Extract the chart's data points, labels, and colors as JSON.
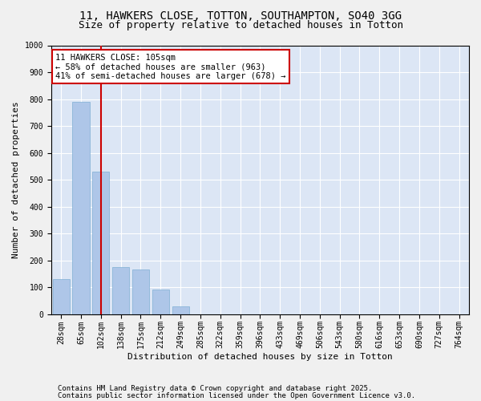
{
  "title_line1": "11, HAWKERS CLOSE, TOTTON, SOUTHAMPTON, SO40 3GG",
  "title_line2": "Size of property relative to detached houses in Totton",
  "xlabel": "Distribution of detached houses by size in Totton",
  "ylabel": "Number of detached properties",
  "bar_categories": [
    "28sqm",
    "65sqm",
    "102sqm",
    "138sqm",
    "175sqm",
    "212sqm",
    "249sqm",
    "285sqm",
    "322sqm",
    "359sqm",
    "396sqm",
    "433sqm",
    "469sqm",
    "506sqm",
    "543sqm",
    "580sqm",
    "616sqm",
    "653sqm",
    "690sqm",
    "727sqm",
    "764sqm"
  ],
  "bar_values": [
    130,
    790,
    530,
    175,
    165,
    90,
    30,
    0,
    0,
    0,
    0,
    0,
    0,
    0,
    0,
    0,
    0,
    0,
    0,
    0,
    0
  ],
  "bar_color": "#aec6e8",
  "bar_edge_color": "#7fafd4",
  "background_color": "#dce6f5",
  "grid_color": "#ffffff",
  "vline_color": "#cc0000",
  "annotation_text": "11 HAWKERS CLOSE: 105sqm\n← 58% of detached houses are smaller (963)\n41% of semi-detached houses are larger (678) →",
  "annotation_box_color": "#cc0000",
  "ylim": [
    0,
    1000
  ],
  "yticks": [
    0,
    100,
    200,
    300,
    400,
    500,
    600,
    700,
    800,
    900,
    1000
  ],
  "footer_line1": "Contains HM Land Registry data © Crown copyright and database right 2025.",
  "footer_line2": "Contains public sector information licensed under the Open Government Licence v3.0.",
  "title_fontsize": 10,
  "subtitle_fontsize": 9,
  "axis_label_fontsize": 8,
  "tick_fontsize": 7,
  "annotation_fontsize": 7.5,
  "footer_fontsize": 6.5
}
